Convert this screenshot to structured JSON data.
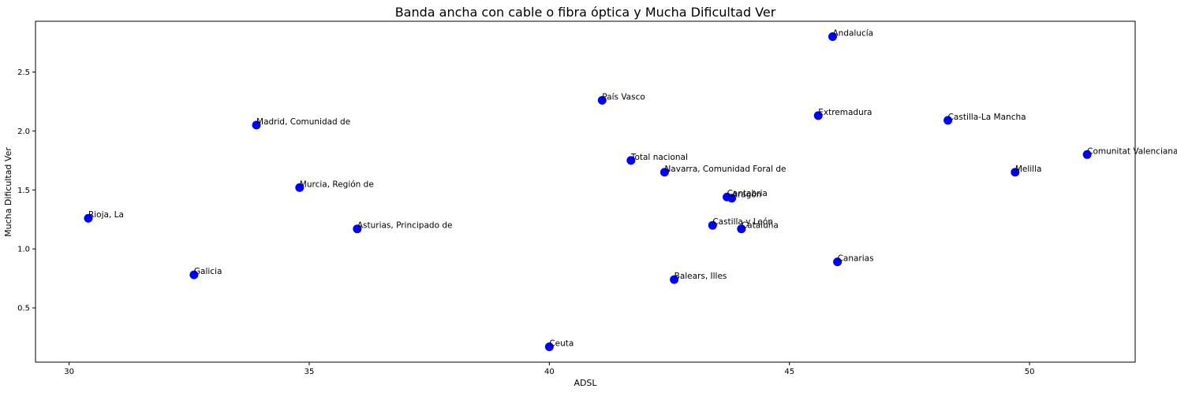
{
  "chart_data": {
    "type": "scatter",
    "title": "Banda ancha con cable o fibra óptica y Mucha Dificultad Ver",
    "xlabel": "ADSL",
    "ylabel": "Mucha Dificultad Ver",
    "xlim": [
      29.3,
      52.2
    ],
    "ylim": [
      0.04,
      2.93
    ],
    "xticks": [
      30,
      35,
      40,
      45,
      50
    ],
    "yticks": [
      0.5,
      1.0,
      1.5,
      2.0,
      2.5
    ],
    "grid": false,
    "marker_color": "#0000ff",
    "points": [
      {
        "label": "Andalucía",
        "x": 45.9,
        "y": 2.8
      },
      {
        "label": "País Vasco",
        "x": 41.1,
        "y": 2.26
      },
      {
        "label": "Extremadura",
        "x": 45.6,
        "y": 2.13
      },
      {
        "label": "Castilla-La Mancha",
        "x": 48.3,
        "y": 2.09
      },
      {
        "label": "Madrid, Comunidad de",
        "x": 33.9,
        "y": 2.05
      },
      {
        "label": "Comunitat Valenciana",
        "x": 51.2,
        "y": 1.8
      },
      {
        "label": "Total nacional",
        "x": 41.7,
        "y": 1.75
      },
      {
        "label": "Navarra, Comunidad Foral de",
        "x": 42.4,
        "y": 1.65
      },
      {
        "label": "Melilla",
        "x": 49.7,
        "y": 1.65
      },
      {
        "label": "Murcia, Región de",
        "x": 34.8,
        "y": 1.52
      },
      {
        "label": "Cantabria",
        "x": 43.7,
        "y": 1.44
      },
      {
        "label": "Aragón",
        "x": 43.8,
        "y": 1.43
      },
      {
        "label": "Rioja, La",
        "x": 30.4,
        "y": 1.26
      },
      {
        "label": "Castilla y León",
        "x": 43.4,
        "y": 1.2
      },
      {
        "label": "Asturias, Principado de",
        "x": 36.0,
        "y": 1.17
      },
      {
        "label": "Cataluña",
        "x": 44.0,
        "y": 1.17
      },
      {
        "label": "Canarias",
        "x": 46.0,
        "y": 0.89
      },
      {
        "label": "Galicia",
        "x": 32.6,
        "y": 0.78
      },
      {
        "label": "Balears, Illes",
        "x": 42.6,
        "y": 0.74
      },
      {
        "label": "Ceuta",
        "x": 40.0,
        "y": 0.17
      }
    ]
  }
}
